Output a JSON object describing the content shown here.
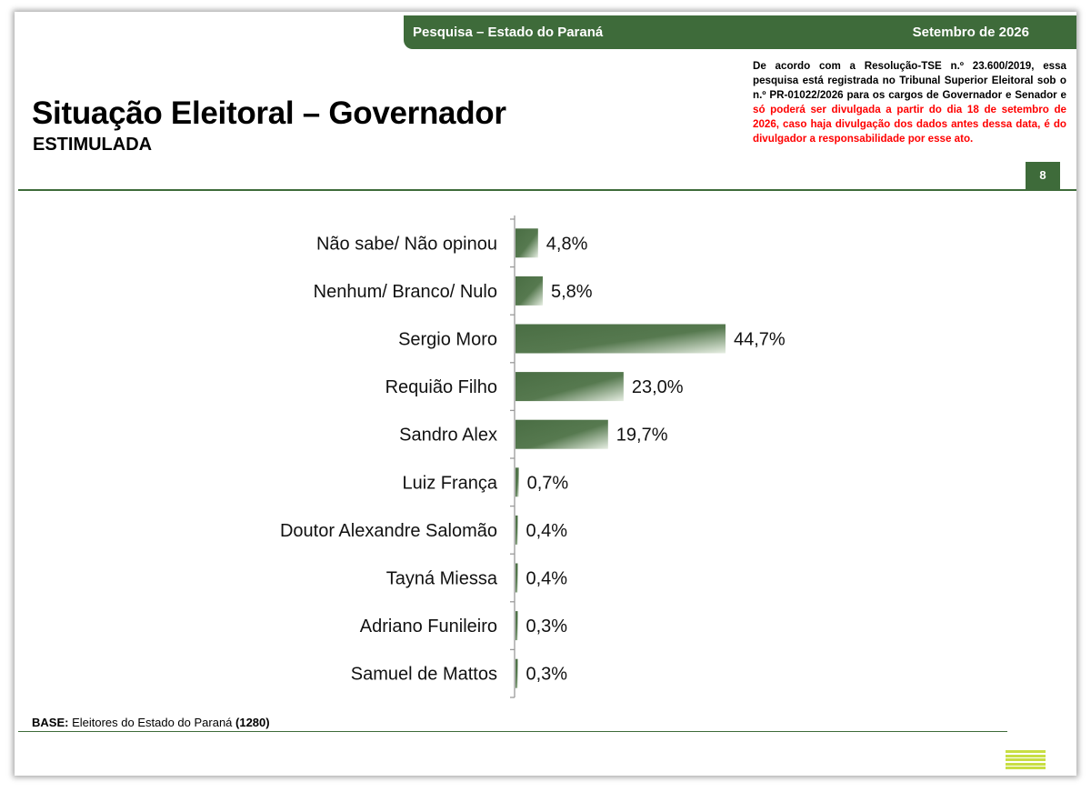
{
  "header": {
    "survey_label": "Pesquisa – Estado do Paraná",
    "date_label": "Setembro de 2026"
  },
  "title": "Situação Eleitoral – Governador",
  "subtitle": "ESTIMULADA",
  "notice": {
    "black_text": "De acordo com a Resolução-TSE n.º 23.600/2019, essa pesquisa está registrada no Tribunal Superior Eleitoral sob o n.º PR-01022/2026 para os cargos de Governador e Senador e ",
    "red_text": "só poderá ser divulgada a partir do dia 18 de setembro de 2026, caso haja divulgação dos dados antes dessa data, é do divulgador a responsabilidade por esse ato."
  },
  "page_number": "8",
  "footer": {
    "base_label": "BASE:",
    "base_text": " Eleitores do Estado do Paraná ",
    "base_count": "(1280)"
  },
  "colors": {
    "accent": "#3e6b3a",
    "bar_dark": "#4a6e44",
    "bar_light": "#e6eee2",
    "notice_red": "#ff0000",
    "logo_yellow": "#c8de44"
  },
  "chart_data": {
    "type": "bar",
    "orientation": "horizontal",
    "categories": [
      "Não sabe/ Não opinou",
      "Nenhum/ Branco/ Nulo",
      "Sergio Moro",
      "Requião Filho",
      "Sandro Alex",
      "Luiz França",
      "Doutor Alexandre Salomão",
      "Tayná Miessa",
      "Adriano Funileiro",
      "Samuel de Mattos"
    ],
    "values": [
      4.8,
      5.8,
      44.7,
      23.0,
      19.7,
      0.7,
      0.4,
      0.4,
      0.3,
      0.3
    ],
    "value_labels": [
      "4,8%",
      "5,8%",
      "44,7%",
      "23,0%",
      "19,7%",
      "0,7%",
      "0,4%",
      "0,4%",
      "0,3%",
      "0,3%"
    ],
    "unit": "%",
    "grid": false
  }
}
